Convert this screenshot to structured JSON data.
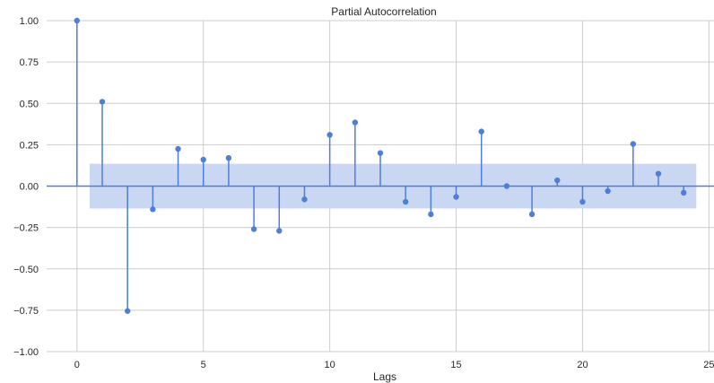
{
  "chart_data": {
    "type": "stem",
    "title": "Partial Autocorrelation",
    "xlabel": "Lags",
    "ylabel": "",
    "xlim": [
      -1.2,
      25.2
    ],
    "ylim": [
      -1.0,
      1.0
    ],
    "xticks": [
      0,
      5,
      10,
      15,
      20,
      25
    ],
    "xtick_labels": [
      "0",
      "5",
      "10",
      "15",
      "20",
      "25"
    ],
    "yticks": [
      -1.0,
      -0.75,
      -0.5,
      -0.25,
      0.0,
      0.25,
      0.5,
      0.75,
      1.0
    ],
    "ytick_labels": [
      "−1.00",
      "−0.75",
      "−0.50",
      "−0.25",
      "0.00",
      "0.25",
      "0.50",
      "0.75",
      "1.00"
    ],
    "grid": true,
    "lags": [
      0,
      1,
      2,
      3,
      4,
      5,
      6,
      7,
      8,
      9,
      10,
      11,
      12,
      13,
      14,
      15,
      16,
      17,
      18,
      19,
      20,
      21,
      22,
      23,
      24
    ],
    "values": [
      1.0,
      0.51,
      -0.755,
      -0.14,
      0.225,
      0.16,
      0.17,
      -0.26,
      -0.27,
      -0.08,
      0.31,
      0.385,
      0.2,
      -0.095,
      -0.17,
      -0.065,
      0.33,
      0.0,
      -0.17,
      0.035,
      -0.095,
      -0.03,
      0.255,
      0.075,
      -0.04
    ],
    "confidence_band": {
      "x_start": 0.5,
      "x_end": 24.5,
      "upper": 0.135,
      "lower": -0.135
    },
    "colors": {
      "stem": "#4c7fd9",
      "band": "#c9d7f2",
      "grid": "#cccccc",
      "zero_line": "#4c7fd9"
    }
  }
}
